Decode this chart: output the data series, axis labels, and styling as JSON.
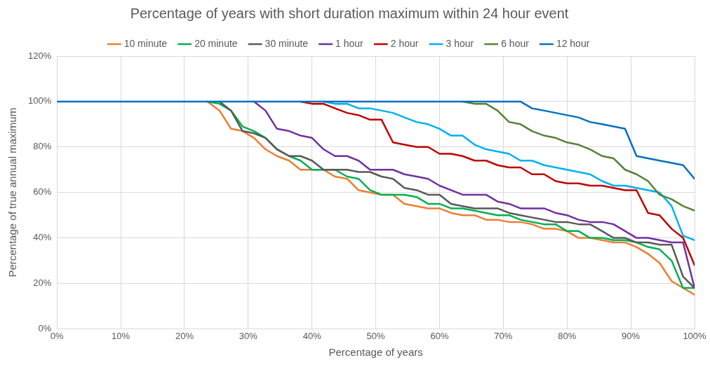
{
  "chart_data": {
    "type": "line",
    "title": "Percentage of years with short duration maximum within 24 hour event",
    "xlabel": "Percentage of years",
    "ylabel": "Percentage of true annual maximum",
    "x": [
      0,
      23.6,
      25.5,
      27.3,
      29.1,
      30.9,
      32.7,
      34.5,
      36.4,
      38.2,
      40,
      41.8,
      43.6,
      45.5,
      47.3,
      49.1,
      50.9,
      52.7,
      54.5,
      56.4,
      58.2,
      60,
      61.8,
      63.6,
      65.5,
      67.3,
      69.1,
      70.9,
      72.7,
      74.5,
      76.4,
      78.2,
      80,
      81.8,
      83.6,
      85.5,
      87.3,
      89.1,
      90.9,
      92.7,
      94.5,
      96.4,
      98.2,
      100
    ],
    "series": [
      {
        "name": "10 minute",
        "color": "#ed7d31",
        "values": [
          null,
          100,
          96,
          88,
          87,
          84,
          79,
          76,
          74,
          70,
          70,
          70,
          67,
          66,
          61,
          60,
          59,
          59,
          55,
          54,
          53,
          53,
          51,
          50,
          50,
          48,
          48,
          47,
          47,
          46,
          44,
          44,
          43,
          40,
          40,
          39,
          38,
          38,
          36,
          33,
          29,
          21,
          18,
          15
        ]
      },
      {
        "name": "20 minute",
        "color": "#00b050",
        "values": [
          null,
          100,
          99,
          96,
          89,
          87,
          84,
          79,
          76,
          74,
          70,
          70,
          70,
          67,
          66,
          61,
          59,
          59,
          59,
          58,
          55,
          55,
          53,
          53,
          52,
          51,
          50,
          50,
          48,
          47,
          46,
          46,
          43,
          43,
          40,
          40,
          39,
          39,
          38,
          36,
          35,
          30,
          18,
          18
        ]
      },
      {
        "name": "30 minute",
        "color": "#595959",
        "values": [
          null,
          null,
          100,
          96,
          87,
          86,
          84,
          79,
          76,
          76,
          74,
          70,
          70,
          70,
          69,
          69,
          67,
          66,
          62,
          61,
          59,
          59,
          55,
          54,
          53,
          53,
          53,
          51,
          50,
          49,
          48,
          47,
          47,
          46,
          46,
          43,
          40,
          40,
          38,
          38,
          37,
          37,
          23,
          18
        ]
      },
      {
        "name": "1 hour",
        "color": "#7030a0",
        "values": [
          null,
          null,
          null,
          null,
          null,
          100,
          96,
          88,
          87,
          85,
          84,
          79,
          76,
          76,
          74,
          70,
          70,
          70,
          68,
          67,
          66,
          63,
          61,
          59,
          59,
          59,
          56,
          55,
          53,
          53,
          53,
          51,
          50,
          48,
          47,
          47,
          46,
          43,
          40,
          40,
          39,
          38,
          38,
          18
        ]
      },
      {
        "name": "2 hour",
        "color": "#c00000",
        "values": [
          null,
          null,
          null,
          null,
          null,
          null,
          null,
          null,
          null,
          100,
          99,
          99,
          97,
          95,
          94,
          92,
          92,
          82,
          81,
          80,
          80,
          77,
          77,
          76,
          74,
          74,
          72,
          71,
          71,
          68,
          68,
          65,
          64,
          64,
          63,
          63,
          62,
          61,
          61,
          51,
          50,
          44,
          40,
          28
        ]
      },
      {
        "name": "3 hour",
        "color": "#00b0f0",
        "values": [
          null,
          null,
          null,
          null,
          null,
          null,
          null,
          null,
          null,
          null,
          null,
          100,
          99,
          99,
          97,
          97,
          96,
          95,
          93,
          91,
          90,
          88,
          85,
          85,
          81,
          79,
          78,
          77,
          74,
          74,
          72,
          71,
          70,
          69,
          68,
          65,
          63,
          63,
          62,
          61,
          60,
          54,
          41,
          39
        ]
      },
      {
        "name": "6 hour",
        "color": "#548235",
        "values": [
          null,
          null,
          null,
          null,
          null,
          null,
          null,
          null,
          null,
          null,
          null,
          null,
          null,
          null,
          null,
          null,
          null,
          null,
          null,
          null,
          null,
          null,
          null,
          100,
          99,
          99,
          96,
          91,
          90,
          87,
          85,
          84,
          82,
          81,
          79,
          76,
          75,
          70,
          68,
          65,
          59,
          57,
          54,
          52
        ]
      },
      {
        "name": "12 hour",
        "color": "#0070c0",
        "values": [
          100,
          100,
          100,
          100,
          100,
          100,
          100,
          100,
          100,
          100,
          100,
          100,
          100,
          100,
          100,
          100,
          100,
          100,
          100,
          100,
          100,
          100,
          100,
          100,
          100,
          100,
          100,
          100,
          100,
          97,
          96,
          95,
          94,
          93,
          91,
          90,
          89,
          88,
          76,
          75,
          74,
          73,
          72,
          66
        ]
      }
    ],
    "xlim": [
      0,
      100
    ],
    "xticks": [
      {
        "value": 0,
        "label": "0%"
      },
      {
        "value": 10,
        "label": "10%"
      },
      {
        "value": 20,
        "label": "20%"
      },
      {
        "value": 30,
        "label": "30%"
      },
      {
        "value": 40,
        "label": "40%"
      },
      {
        "value": 50,
        "label": "50%"
      },
      {
        "value": 60,
        "label": "60%"
      },
      {
        "value": 70,
        "label": "70%"
      },
      {
        "value": 80,
        "label": "80%"
      },
      {
        "value": 90,
        "label": "90%"
      },
      {
        "value": 100,
        "label": "100%"
      }
    ],
    "ylim": [
      0,
      120
    ],
    "yticks": [
      {
        "value": 0,
        "label": "0%"
      },
      {
        "value": 20,
        "label": "20%"
      },
      {
        "value": 40,
        "label": "40%"
      },
      {
        "value": 60,
        "label": "60%"
      },
      {
        "value": 80,
        "label": "80%"
      },
      {
        "value": 100,
        "label": "100%"
      },
      {
        "value": 120,
        "label": "120%"
      }
    ],
    "grid": true,
    "legend": "top",
    "marker": "none",
    "line_style": "solid"
  }
}
